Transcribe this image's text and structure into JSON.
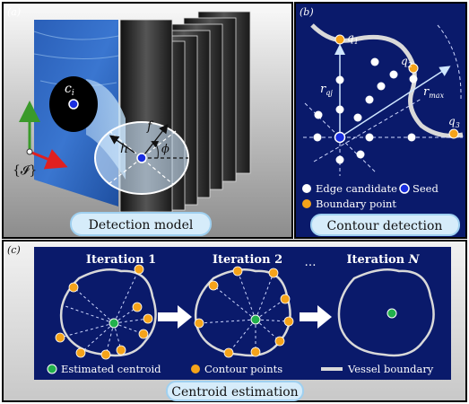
{
  "panel_a": {
    "tag": "(a)",
    "ci_label": "c",
    "ci_sub": "i",
    "f_label": "f",
    "h_label": "h",
    "phi_label": "ϕ",
    "frame_label": "{𝓘}",
    "caption": "Detection model"
  },
  "panel_b": {
    "tag": "(b)",
    "q1": "q",
    "q1_sub": "1",
    "q2": "q",
    "q2_sub": "2",
    "q3": "q",
    "q3_sub": "3",
    "rqj": "r",
    "rqj_sub": "qj",
    "rmax": "r",
    "rmax_sub": "max",
    "legend_edge": "Edge candidate",
    "legend_seed": "Seed",
    "legend_boundary": "Boundary point",
    "caption": "Contour detection"
  },
  "panel_c": {
    "tag": "(c)",
    "iter1": "Iteration 1",
    "iter2": "Iteration 2",
    "dots": "…",
    "iterN_prefix": "Iteration ",
    "iterN_var": "N",
    "legend_centroid": "Estimated centroid",
    "legend_contour": "Contour points",
    "legend_vessel": "Vessel boundary",
    "caption": "Centroid estimation"
  },
  "colors": {
    "navy": "#0a1a6b",
    "orange": "#f5a31a",
    "green": "#22b14c",
    "seed_blue": "#1a2ee0",
    "caption_fill": "#d6ecfa",
    "caption_stroke": "#9fd0f0",
    "contour_gray": "#d9d9d9"
  }
}
